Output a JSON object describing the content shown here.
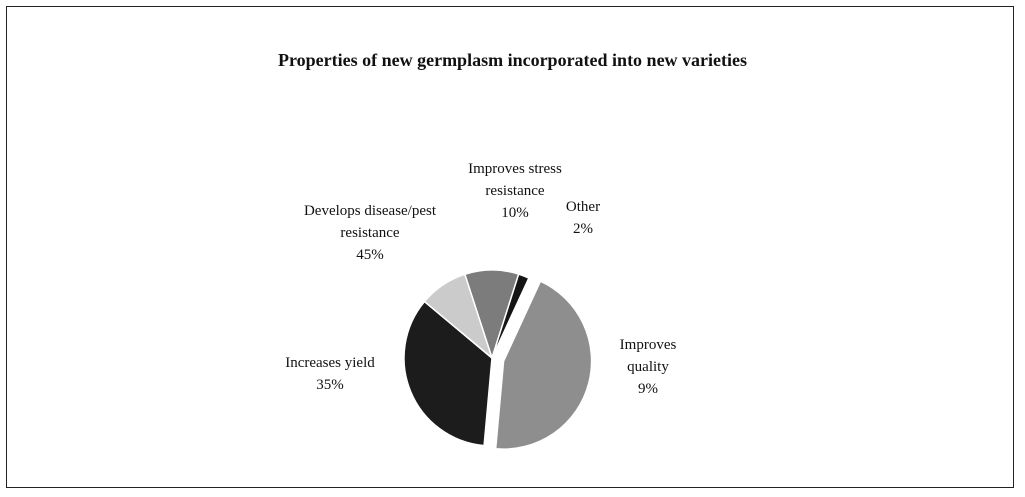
{
  "chart_data": {
    "type": "pie",
    "title": "Properties of new germplasm incorporated into new varieties",
    "categories": [
      "Improves stress resistance",
      "Other",
      "Develops disease/pest resistance",
      "Increases yield",
      "Improves quality"
    ],
    "values": [
      10,
      2,
      45,
      35,
      9
    ],
    "value_labels": [
      "10%",
      "2%",
      "45%",
      "35%",
      "9%"
    ],
    "colors": [
      "#7c7c7c",
      "#151515",
      "#8e8e8e",
      "#1c1c1c",
      "#cbcbcb"
    ]
  }
}
